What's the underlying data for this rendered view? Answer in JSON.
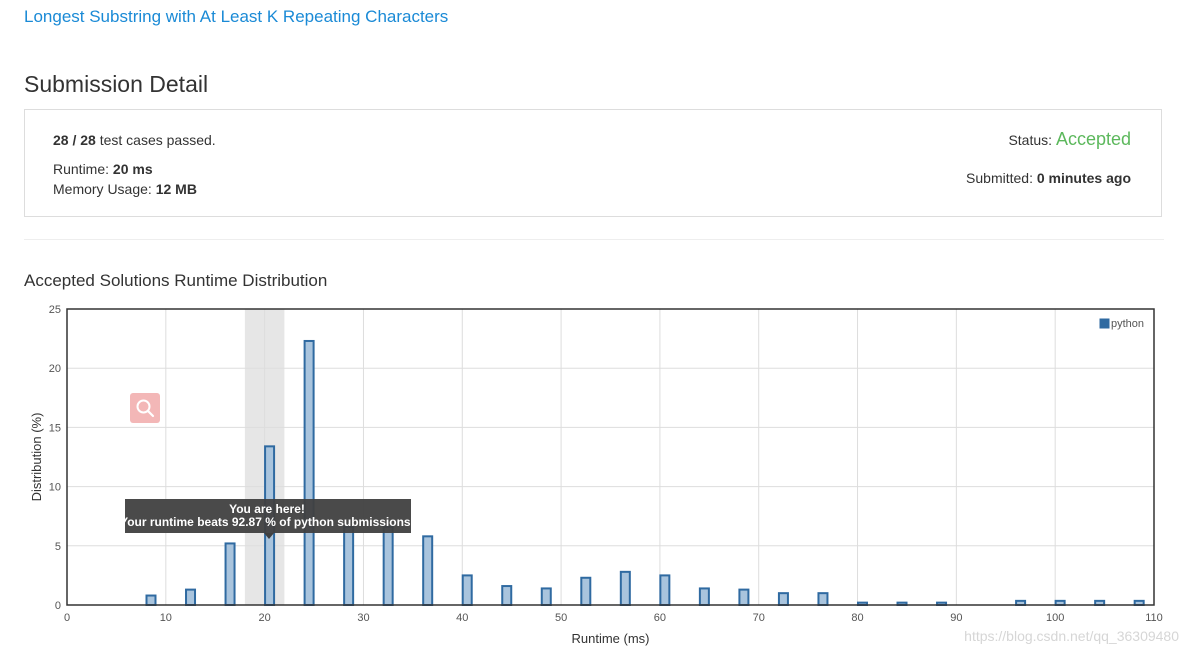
{
  "problem_link": "Longest Substring with At Least K Repeating Characters",
  "page_title": "Submission Detail",
  "summary": {
    "passed": "28",
    "separator": "/",
    "total": "28",
    "passed_suffix": "test cases passed.",
    "runtime_label": "Runtime:",
    "runtime_value": "20 ms",
    "memory_label": "Memory Usage:",
    "memory_value": "12 MB",
    "status_label": "Status:",
    "status_value": "Accepted",
    "submitted_label": "Submitted:",
    "submitted_value": "0 minutes ago"
  },
  "section_title": "Accepted Solutions Runtime Distribution",
  "tooltip": {
    "line1": "You are here!",
    "line2": "Your runtime beats 92.87 % of python submissions."
  },
  "watermark": "https://blog.csdn.net/qq_36309480",
  "icons": {
    "zoom": "search-icon"
  },
  "colors": {
    "link": "#1a8ad6",
    "accepted": "#5cb85c",
    "bar_fill": "#a9c4dd",
    "bar_stroke": "#2f6aa1",
    "highlight_band": "#e6e6e6",
    "tooltip_bg": "#404040"
  },
  "chart_data": {
    "type": "bar",
    "xlabel": "Runtime (ms)",
    "ylabel": "Distribution (%)",
    "xlim": [
      0,
      110
    ],
    "ylim": [
      0,
      25
    ],
    "xticks": [
      0,
      10,
      20,
      30,
      40,
      50,
      60,
      70,
      80,
      90,
      100,
      110
    ],
    "yticks": [
      0,
      5,
      10,
      15,
      20,
      25
    ],
    "grid": true,
    "legend_position": "top-right",
    "highlight": {
      "from": 18,
      "to": 22
    },
    "series": [
      {
        "name": "python",
        "x": [
          8.5,
          12.5,
          16.5,
          20.5,
          24.5,
          28.5,
          32.5,
          36.5,
          40.5,
          44.5,
          48.5,
          52.5,
          56.5,
          60.5,
          64.5,
          68.5,
          72.5,
          76.5,
          80.5,
          84.5,
          88.5,
          96.5,
          100.5,
          104.5,
          108.5
        ],
        "values": [
          0.8,
          1.3,
          5.2,
          13.4,
          22.3,
          6.6,
          6.6,
          5.8,
          2.5,
          1.6,
          1.4,
          2.3,
          2.8,
          2.5,
          1.4,
          1.3,
          1.0,
          1.0,
          0.2,
          0.2,
          0.2,
          0.35,
          0.35,
          0.35,
          0.35
        ]
      }
    ]
  }
}
